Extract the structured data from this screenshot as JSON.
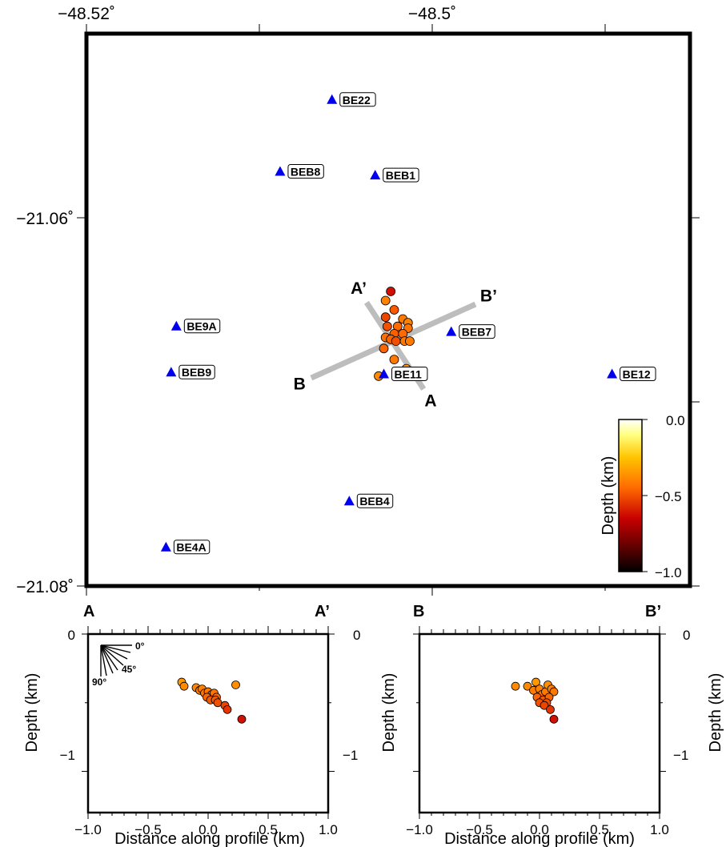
{
  "map": {
    "type": "scatter",
    "x_ticks": [
      "−48.52˚",
      "−48.5˚"
    ],
    "y_ticks": [
      "−21.06˚",
      "−21.08˚"
    ],
    "stations": [
      {
        "name": "BE22",
        "lon": -48.5058,
        "lat": -21.0536
      },
      {
        "name": "BEB8",
        "lon": -48.5088,
        "lat": -21.0575
      },
      {
        "name": "BEB1",
        "lon": -48.5033,
        "lat": -21.0577
      },
      {
        "name": "BE9A",
        "lon": -48.5148,
        "lat": -21.0659
      },
      {
        "name": "BEB7",
        "lon": -48.4989,
        "lat": -21.0662
      },
      {
        "name": "BEB9",
        "lon": -48.5151,
        "lat": -21.0684
      },
      {
        "name": "BE11",
        "lon": -48.5028,
        "lat": -21.0685
      },
      {
        "name": "BE12",
        "lon": -48.4896,
        "lat": -21.0685
      },
      {
        "name": "BEB4",
        "lon": -48.5048,
        "lat": -21.0754
      },
      {
        "name": "BE4A",
        "lon": -48.5154,
        "lat": -21.0779
      }
    ],
    "events": [
      {
        "lon": -48.5024,
        "lat": -21.064,
        "depth": -0.62
      },
      {
        "lon": -48.5027,
        "lat": -21.0645,
        "depth": -0.4
      },
      {
        "lon": -48.5022,
        "lat": -21.065,
        "depth": -0.48
      },
      {
        "lon": -48.5027,
        "lat": -21.0654,
        "depth": -0.52
      },
      {
        "lon": -48.5017,
        "lat": -21.0655,
        "depth": -0.42
      },
      {
        "lon": -48.5014,
        "lat": -21.0657,
        "depth": -0.4
      },
      {
        "lon": -48.5026,
        "lat": -21.0659,
        "depth": -0.5
      },
      {
        "lon": -48.502,
        "lat": -21.0659,
        "depth": -0.45
      },
      {
        "lon": -48.5014,
        "lat": -21.066,
        "depth": -0.43
      },
      {
        "lon": -48.5022,
        "lat": -21.0663,
        "depth": -0.47
      },
      {
        "lon": -48.5017,
        "lat": -21.0663,
        "depth": -0.45
      },
      {
        "lon": -48.5027,
        "lat": -21.0665,
        "depth": -0.44
      },
      {
        "lon": -48.5024,
        "lat": -21.0666,
        "depth": -0.46
      },
      {
        "lon": -48.5016,
        "lat": -21.0667,
        "depth": -0.42
      },
      {
        "lon": -48.5013,
        "lat": -21.0667,
        "depth": -0.41
      },
      {
        "lon": -48.5021,
        "lat": -21.0667,
        "depth": -0.5
      },
      {
        "lon": -48.5028,
        "lat": -21.0671,
        "depth": -0.46
      },
      {
        "lon": -48.5022,
        "lat": -21.0677,
        "depth": -0.42
      },
      {
        "lon": -48.5015,
        "lat": -21.0682,
        "depth": -0.35
      },
      {
        "lon": -48.5031,
        "lat": -21.0686,
        "depth": -0.38
      }
    ],
    "profiles": [
      {
        "start": "A",
        "end": "A’",
        "start_lon": -48.5005,
        "start_lat": -21.0693,
        "end_lon": -48.5038,
        "end_lat": -21.0646
      },
      {
        "start": "B",
        "end": "B’",
        "start_lon": -48.507,
        "start_lat": -21.0687,
        "end_lon": -48.4975,
        "end_lat": -21.0647
      }
    ],
    "colorbar": {
      "label": "Depth (km)",
      "ticks": [
        "0.0",
        "−0.5",
        "−1.0"
      ],
      "range": [
        -1.0,
        0.0
      ]
    }
  },
  "sections": [
    {
      "start_label": "A",
      "end_label": "A’",
      "xlabel": "Distance along profile (km)",
      "ylabel": "Depth (km)",
      "x_ticks": [
        "−1.0",
        "−0.5",
        "0.0",
        "0.5",
        "1.0"
      ],
      "y_ticks": [
        "0",
        "−1"
      ],
      "xlim": [
        -1.0,
        1.0
      ],
      "ylim": [
        -1.3,
        0.0
      ],
      "dip_labels": [
        "0°",
        "45°",
        "90°"
      ],
      "points": [
        {
          "x": -0.22,
          "depth": -0.35
        },
        {
          "x": -0.2,
          "depth": -0.38
        },
        {
          "x": -0.1,
          "depth": -0.39
        },
        {
          "x": -0.07,
          "depth": -0.41
        },
        {
          "x": -0.05,
          "depth": -0.4
        },
        {
          "x": -0.03,
          "depth": -0.43
        },
        {
          "x": 0.0,
          "depth": -0.42
        },
        {
          "x": 0.03,
          "depth": -0.44
        },
        {
          "x": 0.05,
          "depth": -0.43
        },
        {
          "x": 0.07,
          "depth": -0.46
        },
        {
          "x": -0.01,
          "depth": -0.46
        },
        {
          "x": 0.02,
          "depth": -0.48
        },
        {
          "x": 0.06,
          "depth": -0.48
        },
        {
          "x": 0.08,
          "depth": -0.5
        },
        {
          "x": 0.14,
          "depth": -0.52
        },
        {
          "x": 0.16,
          "depth": -0.55
        },
        {
          "x": 0.23,
          "depth": -0.37
        },
        {
          "x": 0.28,
          "depth": -0.62
        }
      ]
    },
    {
      "start_label": "B",
      "end_label": "B’",
      "xlabel": "Distance along profile (km)",
      "ylabel": "Depth (km)",
      "x_ticks": [
        "−1.0",
        "−0.5",
        "0.0",
        "0.5",
        "1.0"
      ],
      "y_ticks": [
        "0",
        "−1"
      ],
      "xlim": [
        -1.0,
        1.0
      ],
      "ylim": [
        -1.3,
        0.0
      ],
      "points": [
        {
          "x": -0.2,
          "depth": -0.38
        },
        {
          "x": -0.1,
          "depth": -0.38
        },
        {
          "x": -0.05,
          "depth": -0.41
        },
        {
          "x": -0.03,
          "depth": -0.35
        },
        {
          "x": 0.0,
          "depth": -0.4
        },
        {
          "x": 0.02,
          "depth": -0.44
        },
        {
          "x": 0.05,
          "depth": -0.42
        },
        {
          "x": 0.07,
          "depth": -0.37
        },
        {
          "x": 0.1,
          "depth": -0.4
        },
        {
          "x": 0.12,
          "depth": -0.42
        },
        {
          "x": -0.02,
          "depth": -0.46
        },
        {
          "x": 0.03,
          "depth": -0.48
        },
        {
          "x": 0.08,
          "depth": -0.46
        },
        {
          "x": 0.06,
          "depth": -0.5
        },
        {
          "x": 0.0,
          "depth": -0.5
        },
        {
          "x": 0.04,
          "depth": -0.52
        },
        {
          "x": 0.09,
          "depth": -0.55
        },
        {
          "x": 0.12,
          "depth": -0.62
        }
      ]
    }
  ],
  "chart_data": [
    {
      "type": "scatter",
      "xlabel": "",
      "ylabel": "",
      "x_ticks": [
        "−48.52˚",
        "−48.5˚"
      ],
      "y_ticks": [
        "−21.06˚",
        "−21.08˚"
      ],
      "legend": "colorbar bottom-right: Depth (km) 0.0 to −1.0"
    },
    {
      "type": "scatter",
      "xlabel": "Distance along profile (km)",
      "ylabel": "Depth (km)",
      "xlim": [
        -1.0,
        1.0
      ],
      "ylim": [
        -1.3,
        0.0
      ]
    },
    {
      "type": "scatter",
      "xlabel": "Distance along profile (km)",
      "ylabel": "Depth (km)",
      "xlim": [
        -1.0,
        1.0
      ],
      "ylim": [
        -1.3,
        0.0
      ]
    }
  ],
  "colors": {
    "station": "#0000ee",
    "profile_line": "#bdbdbd",
    "frame": "#000000"
  }
}
